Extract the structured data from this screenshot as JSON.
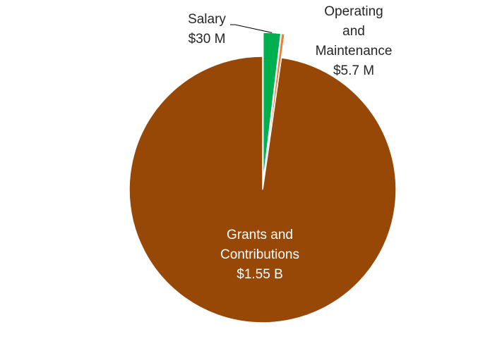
{
  "chart_data": {
    "type": "pie",
    "title": "",
    "unit": "USD millions",
    "slices": [
      {
        "name": "Salary",
        "value": 30,
        "label_lines": [
          "Salary",
          "$30 M"
        ],
        "color": "#00B050",
        "exploded": true
      },
      {
        "name": "Operating and Maintenance",
        "value": 5.7,
        "label_lines": [
          "Operating",
          "and",
          "Maintenance",
          "$5.7 M"
        ],
        "color": "#ED7D31",
        "exploded": true
      },
      {
        "name": "Grants and Contributions",
        "value": 1550,
        "label_lines": [
          "Grants and",
          "Contributions",
          "$1.55 B"
        ],
        "color": "#974706",
        "exploded": false
      }
    ],
    "start_angle_deg": 0,
    "direction": "clockwise",
    "legend": "none"
  }
}
